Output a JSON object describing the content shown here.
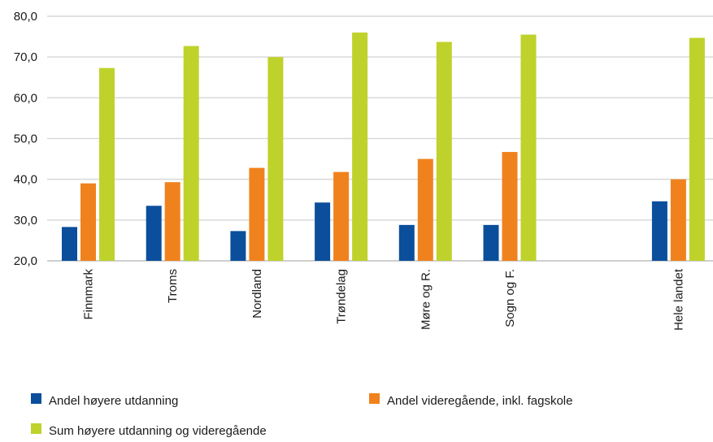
{
  "chart_data": {
    "type": "bar",
    "title": "",
    "xlabel": "",
    "ylabel": "",
    "categories": [
      "Finnmark",
      "Troms",
      "Nordland",
      "Trøndelag",
      "Møre og R.",
      "Sogn og F.",
      "",
      "Hele landet"
    ],
    "series": [
      {
        "name": "Andel høyere utdanning",
        "color": "#0b4f9c",
        "values": [
          28.3,
          33.5,
          27.3,
          34.3,
          28.8,
          28.8,
          null,
          34.6
        ]
      },
      {
        "name": "Andel videregående, inkl. fagskole",
        "color": "#f0821e",
        "values": [
          39.0,
          39.3,
          42.8,
          41.8,
          45.0,
          46.7,
          null,
          40.0
        ]
      },
      {
        "name": "Sum høyere utdanning og videregående",
        "color": "#bfd22b",
        "values": [
          67.3,
          72.7,
          70.0,
          76.0,
          73.7,
          75.5,
          null,
          74.7
        ]
      }
    ],
    "ylim": [
      20,
      80
    ],
    "yticks": [
      "20,0",
      "30,0",
      "40,0",
      "50,0",
      "60,0",
      "70,0",
      "80,0"
    ],
    "grid": true,
    "legend_position": "bottom"
  }
}
